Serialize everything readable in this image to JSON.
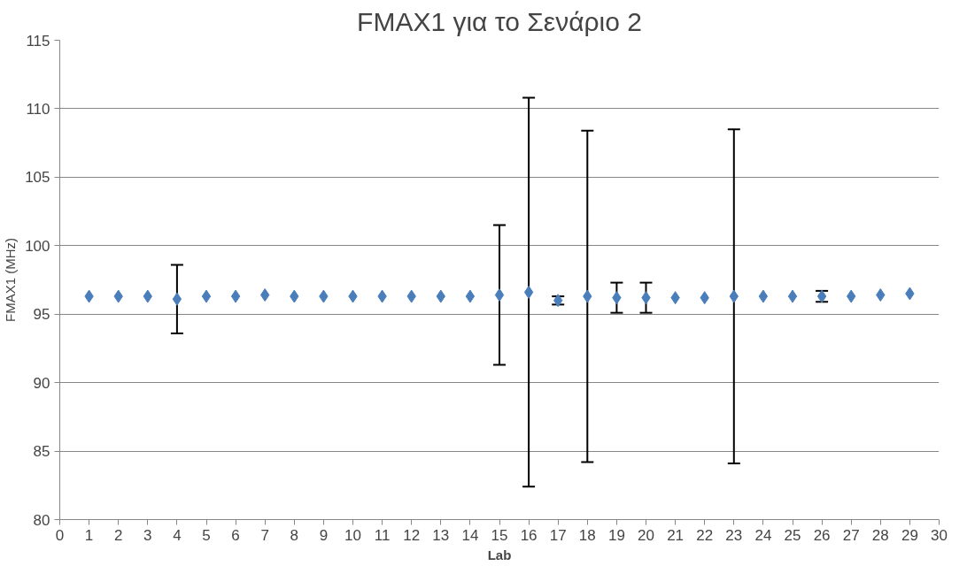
{
  "chart_data": {
    "type": "scatter",
    "title": "FMAX1 για το Σενάριο 2",
    "xlabel": "Lab",
    "ylabel": "FMAX1 (MHz)",
    "x": [
      1,
      2,
      3,
      4,
      5,
      6,
      7,
      8,
      9,
      10,
      11,
      12,
      13,
      14,
      15,
      16,
      17,
      18,
      19,
      20,
      21,
      22,
      23,
      24,
      25,
      26,
      27,
      28,
      29
    ],
    "series": [
      {
        "color": "#4a7ebb",
        "values": [
          96.3,
          96.3,
          96.3,
          96.1,
          96.3,
          96.3,
          96.4,
          96.3,
          96.3,
          96.3,
          96.3,
          96.3,
          96.3,
          96.3,
          96.4,
          96.6,
          96.0,
          96.3,
          96.2,
          96.2,
          96.2,
          96.2,
          96.3,
          96.3,
          96.3,
          96.3,
          96.3,
          96.4,
          96.5
        ],
        "errors": [
          null,
          null,
          null,
          2.5,
          null,
          null,
          null,
          null,
          null,
          null,
          null,
          null,
          null,
          null,
          5.1,
          14.2,
          0.3,
          12.1,
          1.1,
          1.1,
          null,
          null,
          12.2,
          null,
          null,
          0.4,
          null,
          null,
          null
        ]
      }
    ],
    "marker": "diamond",
    "grid": "y",
    "xlim": [
      0,
      30
    ],
    "xticks": [
      0,
      1,
      2,
      3,
      4,
      5,
      6,
      7,
      8,
      9,
      10,
      11,
      12,
      13,
      14,
      15,
      16,
      17,
      18,
      19,
      20,
      21,
      22,
      23,
      24,
      25,
      26,
      27,
      28,
      29,
      30
    ],
    "ylim": [
      80,
      115
    ],
    "yticks": [
      80,
      85,
      90,
      95,
      100,
      105,
      110,
      115
    ]
  }
}
